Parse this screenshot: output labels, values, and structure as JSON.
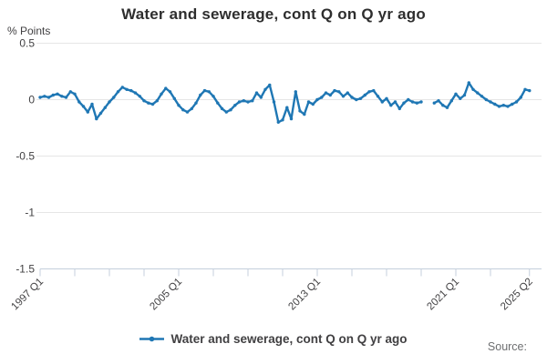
{
  "header": {
    "title": "Water and sewerage, cont Q on Q yr ago"
  },
  "axes": {
    "y_unit_label": "% Points"
  },
  "legend": {
    "series_label": "Water and sewerage, cont Q on Q yr ago"
  },
  "footer": {
    "source_label": "Source:"
  },
  "colors": {
    "line": "#1f77b4",
    "grid": "#e6e6e6",
    "axis": "#c4cfdc",
    "text_gray": "#414042",
    "text_muted": "#6d6e70"
  },
  "chart_data": {
    "type": "line",
    "title": "Water and sewerage, cont Q on Q yr ago",
    "ylabel": "% Points",
    "xlabel": "",
    "ylim": [
      -1.5,
      0.5
    ],
    "grid": true,
    "legend_position": "bottom",
    "marker": "circle",
    "frequency": "quarterly",
    "x_start": "1997 Q1",
    "x_end": "2025 Q2",
    "x_gap": [
      "2019 Q2",
      "2019 Q3"
    ],
    "y_tick_labels": [
      "0.5",
      "0",
      "-0.5",
      "-1",
      "-1.5"
    ],
    "x_minor_tick_every_quarters": 8,
    "x_labeled_ticks": [
      {
        "q": "1997 Q1",
        "index": 0
      },
      {
        "q": "2005 Q1",
        "index": 32
      },
      {
        "q": "2013 Q1",
        "index": 64
      },
      {
        "q": "2021 Q1",
        "index": 96
      },
      {
        "q": "2025 Q2",
        "index": 113
      }
    ],
    "series": [
      {
        "name": "Water and sewerage, cont Q on Q yr ago",
        "values": [
          0.02,
          0.03,
          0.02,
          0.04,
          0.05,
          0.03,
          0.02,
          0.07,
          0.05,
          -0.02,
          -0.06,
          -0.11,
          -0.04,
          -0.17,
          -0.12,
          -0.07,
          -0.02,
          0.02,
          0.07,
          0.11,
          0.09,
          0.08,
          0.06,
          0.03,
          -0.01,
          -0.03,
          -0.04,
          -0.01,
          0.05,
          0.1,
          0.07,
          0.01,
          -0.05,
          -0.09,
          -0.11,
          -0.08,
          -0.03,
          0.04,
          0.08,
          0.07,
          0.03,
          -0.03,
          -0.08,
          -0.11,
          -0.09,
          -0.05,
          -0.02,
          -0.01,
          -0.02,
          -0.01,
          0.06,
          0.02,
          0.09,
          0.13,
          -0.02,
          -0.2,
          -0.18,
          -0.07,
          -0.17,
          0.07,
          -0.1,
          -0.13,
          -0.02,
          -0.04,
          0.0,
          0.02,
          0.06,
          0.04,
          0.08,
          0.07,
          0.03,
          0.06,
          0.02,
          0.0,
          0.01,
          0.04,
          0.07,
          0.08,
          0.03,
          -0.02,
          0.01,
          -0.05,
          -0.02,
          -0.08,
          -0.03,
          0.0,
          -0.02,
          -0.03,
          -0.02,
          null,
          null,
          -0.03,
          -0.01,
          -0.05,
          -0.07,
          -0.01,
          0.05,
          0.01,
          0.04,
          0.15,
          0.09,
          0.06,
          0.03,
          0.0,
          -0.02,
          -0.04,
          -0.06,
          -0.05,
          -0.06,
          -0.04,
          -0.02,
          0.02,
          0.09,
          0.08
        ]
      }
    ]
  }
}
